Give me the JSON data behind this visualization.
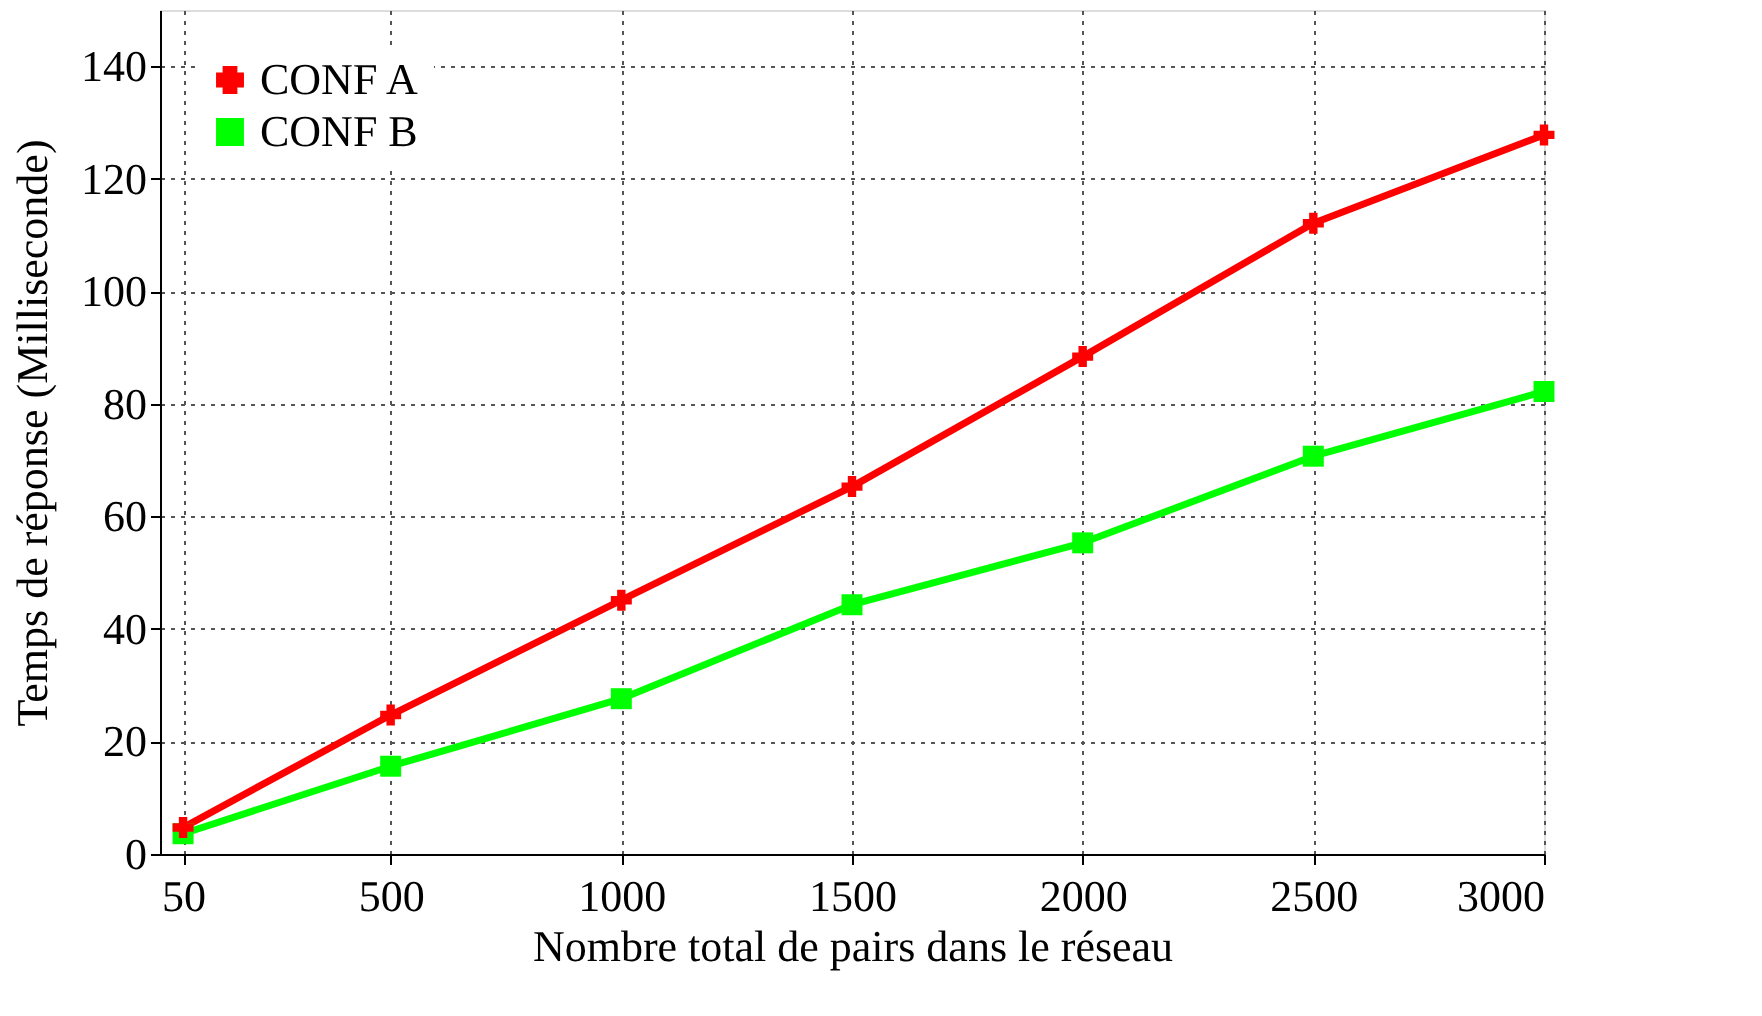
{
  "chart_data": {
    "type": "line",
    "xlabel": "Nombre total de pairs dans le réseau",
    "ylabel": "Temps de réponse (Milliseconde)",
    "x": [
      50,
      500,
      1000,
      1500,
      2000,
      2500,
      3000
    ],
    "series": [
      {
        "name": "CONF A",
        "color": "#ff0000",
        "marker": "cross",
        "values": [
          4.7,
          24.7,
          45.1,
          65.3,
          88.4,
          112.1,
          127.8
        ]
      },
      {
        "name": "CONF B",
        "color": "#00ff00",
        "marker": "square",
        "values": [
          3.6,
          15.6,
          27.6,
          44.3,
          55.3,
          70.7,
          82.2
        ]
      }
    ],
    "xlim": [
      0,
      3000
    ],
    "xticks": [
      50,
      500,
      1000,
      1500,
      2000,
      2500,
      3000
    ],
    "ylim": [
      0,
      150
    ],
    "yticks": [
      0,
      20,
      40,
      60,
      80,
      100,
      120,
      140
    ],
    "grid": true,
    "legend": "top left",
    "line_style": "solid"
  }
}
